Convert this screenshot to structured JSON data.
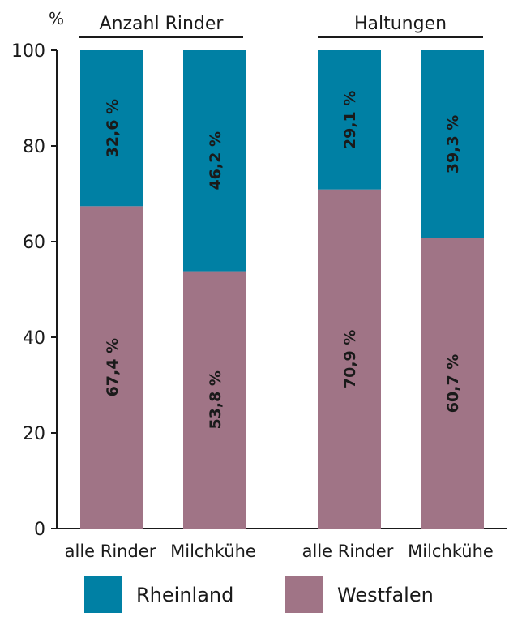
{
  "chart_data": {
    "type": "bar",
    "stacked": true,
    "orientation": "vertical",
    "ylabel": "%",
    "ylim": [
      0,
      100
    ],
    "yticks": [
      "0",
      "20",
      "40",
      "60",
      "80",
      "100"
    ],
    "groups": [
      {
        "label": "Anzahl Rinder",
        "categories": [
          "alle Rinder",
          "Milchkühe"
        ]
      },
      {
        "label": "Haltungen",
        "categories": [
          "alle Rinder",
          "Milchkühe"
        ]
      }
    ],
    "categories": [
      "alle Rinder",
      "Milchkühe",
      "alle Rinder",
      "Milchkühe"
    ],
    "series": [
      {
        "name": "Westfalen",
        "color": "#a07486",
        "values": [
          67.4,
          53.8,
          70.9,
          60.7
        ],
        "labels": [
          "67,4 %",
          "53,8 %",
          "70,9 %",
          "60,7 %"
        ]
      },
      {
        "name": "Rheinland",
        "color": "#0080a4",
        "values": [
          32.6,
          46.2,
          29.1,
          39.3
        ],
        "labels": [
          "32,6 %",
          "46,2 %",
          "29,1 %",
          "39,3 %"
        ]
      }
    ],
    "legend": {
      "position": "bottom",
      "items": [
        {
          "name": "Rheinland",
          "color": "#0080a4"
        },
        {
          "name": "Westfalen",
          "color": "#a07486"
        }
      ]
    },
    "grid": false
  }
}
